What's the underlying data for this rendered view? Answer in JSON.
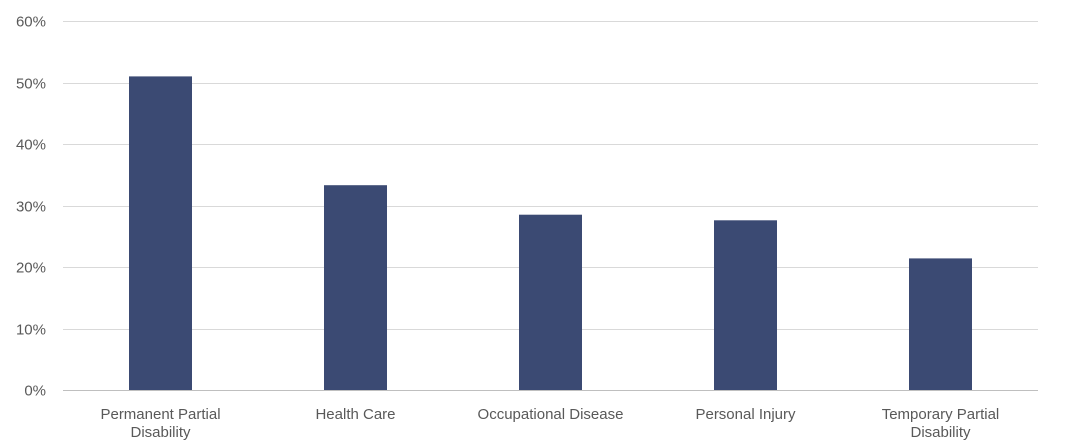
{
  "chart_data": {
    "type": "bar",
    "title": "",
    "xlabel": "",
    "ylabel": "",
    "categories": [
      [
        "Permanent Partial",
        "Disability"
      ],
      [
        "Health Care"
      ],
      [
        "Occupational Disease"
      ],
      [
        "Personal Injury"
      ],
      [
        "Temporary Partial",
        "Disability"
      ]
    ],
    "values": [
      51,
      33.3,
      28.5,
      27.6,
      21.4
    ],
    "ylim": [
      0,
      60
    ],
    "yticks": [
      0,
      10,
      20,
      30,
      40,
      50,
      60
    ],
    "ytick_labels": [
      "0%",
      "10%",
      "20%",
      "30%",
      "40%",
      "50%",
      "60%"
    ],
    "grid": true,
    "legend": "none",
    "bar_color": "#3b4a73"
  }
}
